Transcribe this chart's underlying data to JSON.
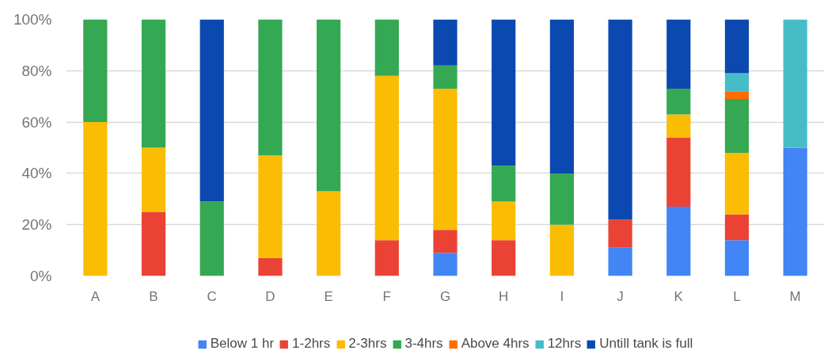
{
  "chart_data": {
    "type": "bar",
    "stacked": true,
    "categories": [
      "A",
      "B",
      "C",
      "D",
      "E",
      "F",
      "G",
      "H",
      "I",
      "J",
      "K",
      "L",
      "M"
    ],
    "series": [
      {
        "name": "Below 1 hr",
        "color": "#4285f4",
        "values": [
          null,
          null,
          null,
          null,
          null,
          null,
          9,
          null,
          null,
          11,
          27,
          14,
          50
        ]
      },
      {
        "name": "1-2hrs",
        "color": "#ea4335",
        "values": [
          null,
          25,
          null,
          7,
          null,
          14,
          9,
          14,
          null,
          11,
          27,
          10,
          null
        ]
      },
      {
        "name": "2-3hrs",
        "color": "#fbbc04",
        "values": [
          60,
          25,
          null,
          40,
          33,
          64,
          55,
          15,
          20,
          null,
          9,
          24,
          null
        ]
      },
      {
        "name": "3-4hrs",
        "color": "#34a853",
        "values": [
          40,
          50,
          29,
          53,
          67,
          22,
          9,
          14,
          20,
          null,
          10,
          21,
          null
        ]
      },
      {
        "name": "Above 4hrs",
        "color": "#ff6d01",
        "values": [
          null,
          null,
          null,
          null,
          null,
          null,
          null,
          null,
          null,
          null,
          null,
          3,
          null
        ]
      },
      {
        "name": "12hrs",
        "color": "#46bdc6",
        "values": [
          null,
          null,
          null,
          null,
          null,
          null,
          null,
          null,
          null,
          null,
          null,
          7,
          50
        ]
      },
      {
        "name": "Untill tank is full",
        "color": "#0b49b0",
        "values": [
          null,
          null,
          71,
          null,
          null,
          null,
          18,
          57,
          60,
          78,
          27,
          21,
          null
        ]
      }
    ],
    "ylim": [
      0,
      100
    ],
    "yticks": [
      {
        "value": 0,
        "label": "0%"
      },
      {
        "value": 20,
        "label": "20%"
      },
      {
        "value": 40,
        "label": "40%"
      },
      {
        "value": 60,
        "label": "60%"
      },
      {
        "value": 80,
        "label": "80%"
      },
      {
        "value": 100,
        "label": "100%"
      }
    ],
    "grid": "y",
    "legend": "bottom"
  }
}
